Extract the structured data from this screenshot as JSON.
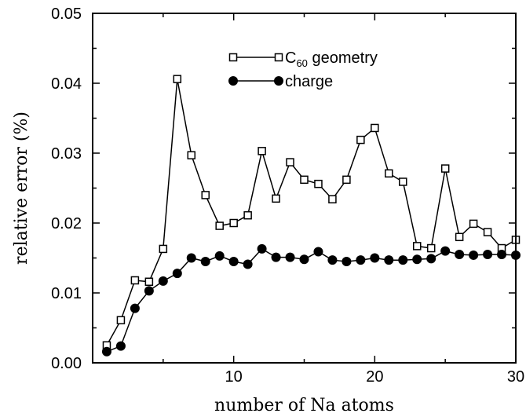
{
  "chart_data": {
    "type": "line",
    "title": "",
    "xlabel": "number of Na atoms",
    "ylabel": "relative error (%)",
    "xlim": [
      0,
      30
    ],
    "ylim": [
      0,
      0.05
    ],
    "x_ticks": [
      "10",
      "20",
      "30"
    ],
    "x_tick_values": [
      10,
      20,
      30
    ],
    "y_ticks": [
      "0.00",
      "0.01",
      "0.02",
      "0.03",
      "0.04",
      "0.05"
    ],
    "y_tick_values": [
      0,
      0.01,
      0.02,
      0.03,
      0.04,
      0.05
    ],
    "grid": false,
    "legend_position": "top-center",
    "series": [
      {
        "name": "C60 geometry",
        "name_main": "C",
        "name_sub": "60",
        "name_rest": " geometry",
        "marker": "open-square",
        "color": "#000000",
        "x": [
          1,
          2,
          3,
          4,
          5,
          6,
          7,
          8,
          9,
          10,
          11,
          12,
          13,
          14,
          15,
          16,
          17,
          18,
          19,
          20,
          21,
          22,
          23,
          24,
          25,
          26,
          27,
          28,
          29,
          30
        ],
        "y": [
          0.0025,
          0.0061,
          0.0118,
          0.0116,
          0.0163,
          0.0406,
          0.0297,
          0.024,
          0.0196,
          0.02,
          0.0211,
          0.0303,
          0.0235,
          0.0287,
          0.0262,
          0.0256,
          0.0234,
          0.0262,
          0.0319,
          0.0336,
          0.0271,
          0.0259,
          0.0167,
          0.0164,
          0.0278,
          0.018,
          0.0199,
          0.0187,
          0.0164,
          0.0176
        ]
      },
      {
        "name": "charge",
        "marker": "filled-circle",
        "color": "#000000",
        "x": [
          1,
          2,
          3,
          4,
          5,
          6,
          7,
          8,
          9,
          10,
          11,
          12,
          13,
          14,
          15,
          16,
          17,
          18,
          19,
          20,
          21,
          22,
          23,
          24,
          25,
          26,
          27,
          28,
          29,
          30
        ],
        "y": [
          0.0016,
          0.0024,
          0.0078,
          0.0103,
          0.0117,
          0.0128,
          0.015,
          0.0145,
          0.0153,
          0.0145,
          0.0141,
          0.0163,
          0.0151,
          0.0151,
          0.0148,
          0.0159,
          0.0147,
          0.0145,
          0.0147,
          0.015,
          0.0147,
          0.0147,
          0.0148,
          0.0149,
          0.016,
          0.0155,
          0.0154,
          0.0155,
          0.0155,
          0.0154
        ]
      }
    ]
  }
}
